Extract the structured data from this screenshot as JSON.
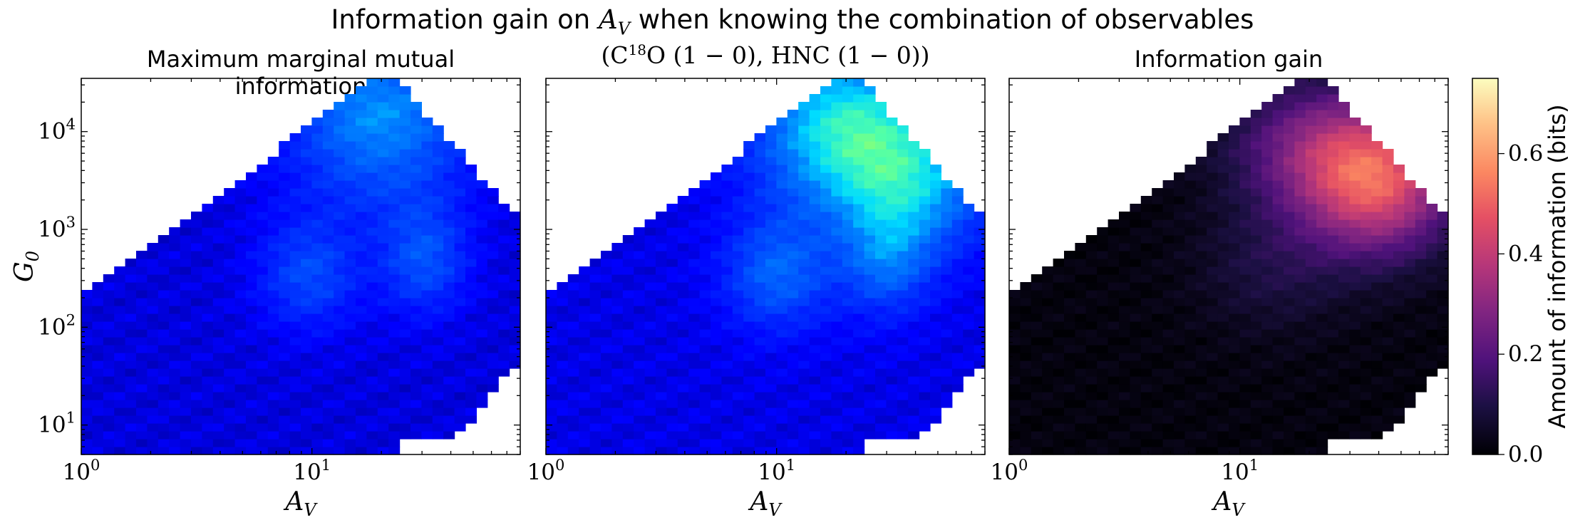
{
  "figure": {
    "suptitle": "Information gain on A_V when knowing the combination of observables",
    "suptitle_plain": "Information gain on ",
    "suptitle_sym": "A",
    "suptitle_sub": "V",
    "suptitle_rest": " when knowing the combination of observables"
  },
  "chart_data": [
    {
      "type": "heatmap",
      "title": "Maximum marginal mutual information",
      "xlabel": "A_V",
      "ylabel": "G_0",
      "xscale": "log",
      "yscale": "log",
      "xlim": [
        1,
        80
      ],
      "ylim": [
        5,
        35000
      ],
      "xticks": [
        "10^0",
        "10^1"
      ],
      "yticks": [
        "10^1",
        "10^2",
        "10^3",
        "10^4"
      ],
      "colormap": "jet",
      "value_range": [
        0,
        0.75
      ],
      "approx_values": {
        "min": 0.05,
        "max": 0.33,
        "peak_region": "A_V 20-35, G_0 > 5000"
      }
    },
    {
      "type": "heatmap",
      "title": "(C18O (1 − 0), HNC (1 − 0))",
      "title_parts": {
        "open": "(C",
        "sup": "18",
        "mid": "O (1 − 0), HNC (1 − 0))"
      },
      "xlabel": "A_V",
      "xscale": "log",
      "yscale": "log",
      "xlim": [
        1,
        80
      ],
      "ylim": [
        5,
        35000
      ],
      "xticks": [
        "10^0",
        "10^1"
      ],
      "colormap": "jet",
      "value_range": [
        0,
        0.75
      ],
      "approx_values": {
        "min": 0.05,
        "max": 0.42,
        "peak_region": "A_V 25-45, G_0 3000-10000"
      }
    },
    {
      "type": "heatmap",
      "title": "Information gain",
      "xlabel": "A_V",
      "xscale": "log",
      "yscale": "log",
      "xlim": [
        1,
        80
      ],
      "ylim": [
        5,
        35000
      ],
      "xticks": [
        "10^0",
        "10^1"
      ],
      "colormap": "magma",
      "value_range": [
        0,
        0.75
      ],
      "approx_values": {
        "min": 0.0,
        "max": 0.55,
        "peak_region": "A_V 30-45, G_0 1500-5000"
      }
    }
  ],
  "colorbar": {
    "label": "Amount of information (bits)",
    "ticks": [
      "0.0",
      "0.2",
      "0.4",
      "0.6"
    ],
    "tick_values": [
      0.0,
      0.2,
      0.4,
      0.6
    ],
    "range": [
      0,
      0.75
    ],
    "colormap": "magma"
  }
}
